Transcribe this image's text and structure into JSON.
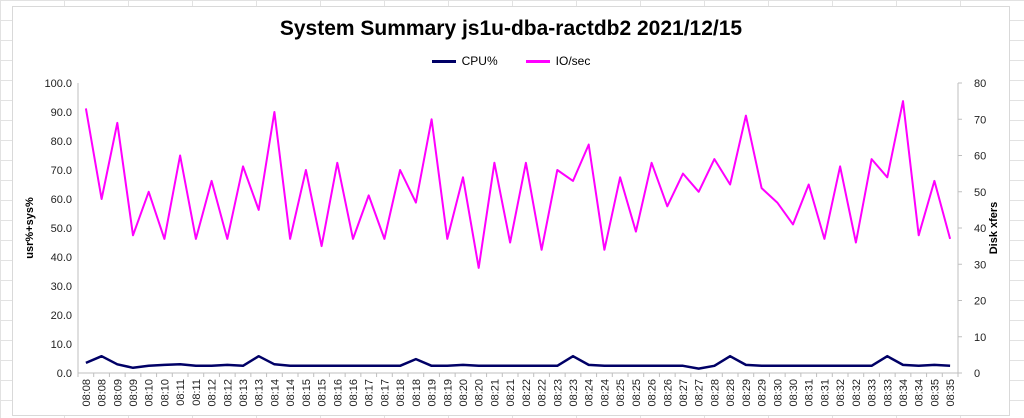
{
  "chart_data": {
    "type": "line",
    "title": "System Summary js1u-dba-ractdb2  2021/12/15",
    "ylabel": "usr%+sys%",
    "y2label": "Disk xfers",
    "ylim": [
      0,
      100
    ],
    "y2lim": [
      0,
      80
    ],
    "yticks": [
      "0.0",
      "10.0",
      "20.0",
      "30.0",
      "40.0",
      "50.0",
      "60.0",
      "70.0",
      "80.0",
      "90.0",
      "100.0"
    ],
    "y2ticks": [
      "0",
      "10",
      "20",
      "30",
      "40",
      "50",
      "60",
      "70",
      "80"
    ],
    "legend": "top-center",
    "gridlines": false,
    "categories": [
      "08:08",
      "08:08",
      "08:09",
      "08:09",
      "08:10",
      "08:10",
      "08:11",
      "08:11",
      "08:12",
      "08:12",
      "08:13",
      "08:13",
      "08:14",
      "08:14",
      "08:15",
      "08:15",
      "08:16",
      "08:16",
      "08:17",
      "08:17",
      "08:18",
      "08:18",
      "08:19",
      "08:19",
      "08:20",
      "08:20",
      "08:21",
      "08:21",
      "08:22",
      "08:22",
      "08:23",
      "08:23",
      "08:24",
      "08:24",
      "08:25",
      "08:25",
      "08:26",
      "08:26",
      "08:27",
      "08:27",
      "08:28",
      "08:28",
      "08:29",
      "08:29",
      "08:30",
      "08:30",
      "08:31",
      "08:31",
      "08:32",
      "08:32",
      "08:33",
      "08:33",
      "08:34",
      "08:34",
      "08:35",
      "08:35"
    ],
    "series": [
      {
        "name": "CPU%",
        "axis": "left",
        "color": "#000066",
        "values": [
          3.5,
          5.8,
          3.0,
          1.8,
          2.5,
          2.8,
          3.0,
          2.5,
          2.5,
          2.8,
          2.5,
          5.8,
          3.0,
          2.5,
          2.5,
          2.5,
          2.5,
          2.5,
          2.5,
          2.5,
          2.5,
          4.8,
          2.5,
          2.5,
          2.8,
          2.5,
          2.5,
          2.5,
          2.5,
          2.5,
          2.5,
          5.8,
          2.8,
          2.5,
          2.5,
          2.5,
          2.5,
          2.5,
          2.5,
          1.5,
          2.5,
          5.8,
          2.8,
          2.5,
          2.5,
          2.5,
          2.5,
          2.5,
          2.5,
          2.5,
          2.5,
          5.8,
          2.8,
          2.5,
          2.8,
          2.5
        ]
      },
      {
        "name": "IO/sec",
        "axis": "right",
        "color": "#ff00ff",
        "values": [
          73,
          48,
          69,
          38,
          50,
          37,
          60,
          37,
          53,
          37,
          57,
          45,
          72,
          37,
          56,
          35,
          58,
          37,
          49,
          37,
          56,
          47,
          70,
          37,
          54,
          29,
          58,
          36,
          58,
          34,
          56,
          53,
          63,
          34,
          54,
          39,
          58,
          46,
          55,
          50,
          59,
          52,
          71,
          51,
          47,
          41,
          52,
          37,
          57,
          36,
          59,
          54,
          75,
          38,
          53,
          37
        ]
      }
    ]
  }
}
